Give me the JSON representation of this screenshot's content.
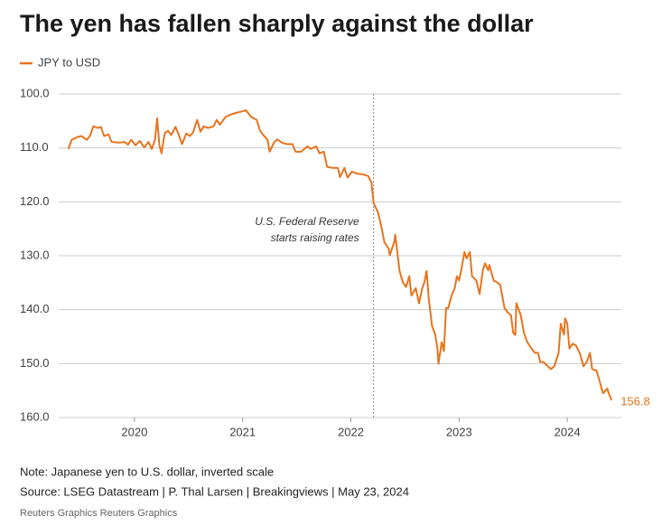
{
  "chart_data": {
    "type": "line",
    "title": "The yen has fallen sharply against the dollar",
    "series": [
      {
        "name": "JPY to USD",
        "color": "#e8741e",
        "x": [
          2019.39,
          2019.42,
          2019.47,
          2019.51,
          2019.56,
          2019.59,
          2019.62,
          2019.66,
          2019.69,
          2019.72,
          2019.76,
          2019.79,
          2019.86,
          2019.91,
          2019.94,
          2019.97,
          2020.01,
          2020.05,
          2020.09,
          2020.13,
          2020.16,
          2020.19,
          2020.21,
          2020.23,
          2020.25,
          2020.28,
          2020.31,
          2020.34,
          2020.38,
          2020.41,
          2020.44,
          2020.48,
          2020.51,
          2020.54,
          2020.58,
          2020.61,
          2020.64,
          2020.68,
          2020.73,
          2020.76,
          2020.79,
          2020.84,
          2020.89,
          2020.94,
          2020.98,
          2021.03,
          2021.08,
          2021.13,
          2021.16,
          2021.19,
          2021.23,
          2021.25,
          2021.29,
          2021.32,
          2021.36,
          2021.41,
          2021.46,
          2021.49,
          2021.54,
          2021.6,
          2021.63,
          2021.68,
          2021.71,
          2021.75,
          2021.78,
          2021.83,
          2021.88,
          2021.9,
          2021.94,
          2021.97,
          2022.01,
          2022.06,
          2022.11,
          2022.16,
          2022.19,
          2022.21,
          2022.25,
          2022.28,
          2022.31,
          2022.35,
          2022.36,
          2022.4,
          2022.41,
          2022.45,
          2022.48,
          2022.51,
          2022.54,
          2022.56,
          2022.6,
          2022.63,
          2022.66,
          2022.68,
          2022.7,
          2022.72,
          2022.75,
          2022.78,
          2022.8,
          2022.81,
          2022.84,
          2022.86,
          2022.88,
          2022.9,
          2022.93,
          2022.96,
          2022.98,
          2023,
          2023.02,
          2023.05,
          2023.07,
          2023.1,
          2023.12,
          2023.16,
          2023.19,
          2023.22,
          2023.24,
          2023.27,
          2023.28,
          2023.32,
          2023.35,
          2023.38,
          2023.42,
          2023.45,
          2023.48,
          2023.5,
          2023.52,
          2023.53,
          2023.57,
          2023.6,
          2023.63,
          2023.67,
          2023.7,
          2023.73,
          2023.75,
          2023.78,
          2023.82,
          2023.85,
          2023.88,
          2023.92,
          2023.94,
          2023.97,
          2023.98,
          2024,
          2024.02,
          2024.05,
          2024.08,
          2024.12,
          2024.15,
          2024.18,
          2024.21,
          2024.23,
          2024.27,
          2024.3,
          2024.33,
          2024.37,
          2024.38,
          2024.41
        ],
        "values": [
          110.2,
          108.5,
          108,
          107.8,
          108.5,
          107.7,
          106,
          106.3,
          106.1,
          107.8,
          107.5,
          108.9,
          109,
          108.9,
          109.4,
          108.5,
          109.5,
          108.7,
          109.9,
          108.9,
          110.2,
          108.5,
          104.5,
          109.4,
          111,
          107.3,
          106.8,
          107.6,
          106.1,
          107.6,
          109.3,
          107.3,
          107.8,
          107.2,
          104.8,
          107,
          106,
          106.3,
          106,
          104.8,
          105.7,
          104.3,
          103.8,
          103.5,
          103.3,
          103,
          104.3,
          104.8,
          106.8,
          107.6,
          108.5,
          110.7,
          109,
          108.4,
          109,
          109.3,
          109.3,
          110.7,
          110.7,
          109.7,
          110.2,
          109.7,
          111,
          110.7,
          113.5,
          113.7,
          113.7,
          115.4,
          113.7,
          115.5,
          114.4,
          114.8,
          114.9,
          115.2,
          116.4,
          120.2,
          121.9,
          124.4,
          127.5,
          128.7,
          129.9,
          127.5,
          126.1,
          132.8,
          134.9,
          135.8,
          133.8,
          137.4,
          136,
          138.8,
          136,
          134.9,
          132.8,
          137.9,
          143,
          144.6,
          147.2,
          150,
          146,
          147.7,
          139.7,
          139.7,
          137.4,
          136,
          133.8,
          134.6,
          132.7,
          129.3,
          130.5,
          129.3,
          133.8,
          134.6,
          137.1,
          132.7,
          131.4,
          132.7,
          131.7,
          134.6,
          134.9,
          135.4,
          139.7,
          140.5,
          141,
          144.3,
          144.7,
          138.8,
          141,
          144.3,
          146,
          147.2,
          148,
          148,
          149.7,
          149.7,
          150.5,
          151,
          150.5,
          148,
          142.6,
          144.6,
          141.6,
          142.6,
          147.2,
          146.3,
          146.6,
          148.3,
          150.5,
          149.7,
          148,
          151,
          151.3,
          153.3,
          155.5,
          154.6,
          155.3,
          156.8
        ]
      }
    ],
    "xlim": [
      2019.3,
      2024.5
    ],
    "xticks": [
      2020,
      2021,
      2022,
      2023,
      2024
    ],
    "ylim": [
      100,
      160
    ],
    "inverted_y": true,
    "yticks": [
      {
        "value": 100,
        "label": "100.0"
      },
      {
        "value": 110,
        "label": "110.0"
      },
      {
        "value": 120,
        "label": "120.0"
      },
      {
        "value": 130,
        "label": "130.0"
      },
      {
        "value": 140,
        "label": "140.0"
      },
      {
        "value": 150,
        "label": "150.0"
      },
      {
        "value": 160,
        "label": "160.0"
      }
    ],
    "grid": true,
    "annotation": {
      "lines": [
        "U.S. Federal Reserve",
        "starts raising rates"
      ],
      "x": 2022.21
    },
    "note": "Note: Japanese yen to U.S. dollar, inverted scale",
    "source": "Source: LSEG Datastream | P. Thal Larsen | Breakingviews | May 23, 2024",
    "credit": "Reuters Graphics Reuters Graphics"
  }
}
